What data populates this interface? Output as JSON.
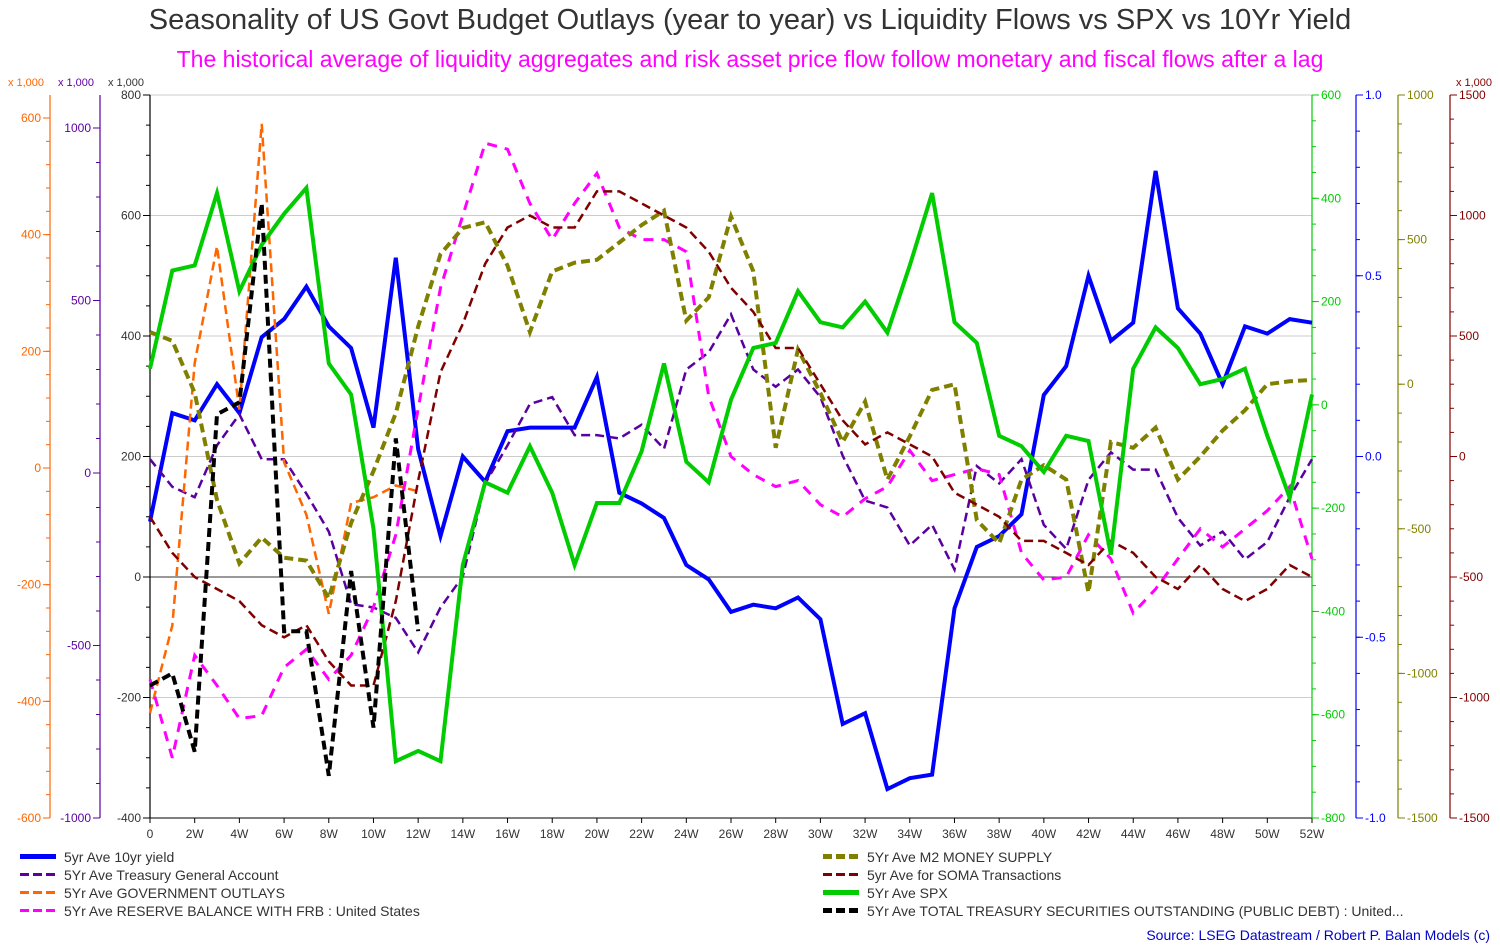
{
  "chart_data": {
    "type": "line",
    "title": "Seasonality of US Govt Budget Outlays (year to year) vs Liquidity Flows vs SPX vs 10Yr Yield",
    "subtitle": "The historical average of liquidity aggregates and risk asset price flow follow monetary and fiscal flows after a lag",
    "source": "Source: LSEG Datastream / Robert P. Balan Models (c)",
    "xlabel": "",
    "x_ticks": [
      "0",
      "2W",
      "4W",
      "6W",
      "8W",
      "10W",
      "12W",
      "14W",
      "16W",
      "18W",
      "20W",
      "22W",
      "24W",
      "26W",
      "28W",
      "30W",
      "32W",
      "34W",
      "36W",
      "38W",
      "40W",
      "42W",
      "44W",
      "46W",
      "48W",
      "50W",
      "52W"
    ],
    "x_range": [
      0,
      52
    ],
    "grid": true,
    "axes": [
      {
        "id": "outlays",
        "side": "left",
        "color": "#ff6600",
        "unit": "x 1,000",
        "range": [
          -600,
          640
        ],
        "ticks": [
          600,
          400,
          200,
          0,
          -200,
          -400,
          -600
        ]
      },
      {
        "id": "tga",
        "side": "left",
        "color": "#5a00a0",
        "unit": "x 1,000",
        "range": [
          -1000,
          1050
        ],
        "ticks": [
          1000,
          500,
          0,
          -500,
          -1000
        ]
      },
      {
        "id": "main",
        "side": "left",
        "color": "#000000",
        "unit": "x 1,000",
        "range": [
          -400,
          800
        ],
        "ticks": [
          800,
          600,
          400,
          200,
          0,
          -200,
          -400
        ]
      },
      {
        "id": "spx",
        "side": "right",
        "color": "#00cc00",
        "unit": "",
        "range": [
          -800,
          600
        ],
        "ticks": [
          600,
          400,
          200,
          0,
          -200,
          -400,
          -600,
          -800
        ]
      },
      {
        "id": "yield",
        "side": "right",
        "color": "#0000ff",
        "unit": "",
        "range": [
          -1.0,
          1.0
        ],
        "ticks": [
          "1.0",
          "0.5",
          "0.0",
          "-0.5",
          "-1.0"
        ]
      },
      {
        "id": "m2",
        "side": "right",
        "color": "#808000",
        "unit": "",
        "range": [
          -1500,
          1000
        ],
        "ticks": [
          1000,
          500,
          0,
          -500,
          -1000,
          -1500
        ]
      },
      {
        "id": "soma",
        "side": "right",
        "color": "#800000",
        "unit": "x 1,000",
        "range": [
          -1500,
          1500
        ],
        "ticks": [
          1500,
          1000,
          500,
          0,
          -500,
          -1000,
          -1500
        ]
      }
    ],
    "series": [
      {
        "name": "5yr Ave 10yr yield",
        "axis": "yield",
        "color": "#0000ff",
        "style": "solid",
        "width": 4,
        "x": [
          0,
          1,
          2,
          3,
          4,
          5,
          6,
          7,
          8,
          9,
          10,
          11,
          12,
          13,
          14,
          15,
          16,
          17,
          18,
          19,
          20,
          21,
          22,
          23,
          24,
          25,
          26,
          27,
          28,
          29,
          30,
          31,
          32,
          33,
          34,
          35,
          36,
          37,
          38,
          39,
          40,
          41,
          42,
          43,
          44,
          45,
          46,
          47,
          48,
          49,
          50,
          51,
          52
        ],
        "values": [
          -0.18,
          0.12,
          0.1,
          0.2,
          0.12,
          0.33,
          0.38,
          0.47,
          0.36,
          0.3,
          0.08,
          0.55,
          0.02,
          -0.22,
          0.0,
          -0.07,
          0.07,
          0.08,
          0.08,
          0.08,
          0.22,
          -0.1,
          -0.13,
          -0.17,
          -0.3,
          -0.34,
          -0.43,
          -0.41,
          -0.42,
          -0.39,
          -0.45,
          -0.74,
          -0.71,
          -0.92,
          -0.89,
          -0.88,
          -0.42,
          -0.25,
          -0.22,
          -0.16,
          0.17,
          0.25,
          0.5,
          0.32,
          0.37,
          0.79,
          0.41,
          0.34,
          0.2,
          0.36,
          0.34,
          0.38,
          0.37
        ]
      },
      {
        "name": "5Yr Ave Treasury General Account",
        "axis": "tga",
        "color": "#5a00a0",
        "style": "dash",
        "width": 2.5,
        "x": [
          0,
          1,
          2,
          3,
          4,
          5,
          6,
          7,
          8,
          9,
          10,
          11,
          12,
          13,
          14,
          15,
          16,
          17,
          18,
          19,
          20,
          21,
          22,
          23,
          24,
          25,
          26,
          27,
          28,
          29,
          30,
          31,
          32,
          33,
          34,
          35,
          36,
          37,
          38,
          39,
          40,
          41,
          42,
          43,
          44,
          45,
          46,
          47,
          48,
          49,
          50,
          51,
          52
        ],
        "values": [
          40,
          -40,
          -70,
          80,
          170,
          40,
          40,
          -60,
          -170,
          -380,
          -390,
          -420,
          -520,
          -390,
          -300,
          -30,
          80,
          200,
          220,
          110,
          110,
          100,
          140,
          70,
          300,
          350,
          460,
          300,
          250,
          300,
          220,
          50,
          -80,
          -100,
          -210,
          -150,
          -280,
          20,
          -30,
          40,
          -150,
          -220,
          -20,
          60,
          10,
          10,
          -130,
          -210,
          -170,
          -250,
          -200,
          -70,
          40
        ]
      },
      {
        "name": "5Yr Ave GOVERNMENT OUTLAYS",
        "axis": "outlays",
        "color": "#ff6600",
        "style": "dash",
        "width": 2.5,
        "x": [
          0,
          1,
          2,
          3,
          4,
          5,
          6,
          7,
          8,
          9,
          10,
          11,
          12
        ],
        "values": [
          -420,
          -270,
          180,
          380,
          100,
          590,
          10,
          -80,
          -250,
          -60,
          -50,
          -30,
          -40
        ]
      },
      {
        "name": "5Yr Ave RESERVE BALANCE WITH FRB : United States",
        "axis": "main",
        "color": "#ff00ff",
        "style": "dash",
        "width": 3,
        "x": [
          0,
          1,
          2,
          3,
          4,
          5,
          6,
          7,
          8,
          9,
          10,
          11,
          12,
          13,
          14,
          15,
          16,
          17,
          18,
          19,
          20,
          21,
          22,
          23,
          24,
          25,
          26,
          27,
          28,
          29,
          30,
          31,
          32,
          33,
          34,
          35,
          36,
          37,
          38,
          39,
          40,
          41,
          42,
          43,
          44,
          45,
          46,
          47,
          48,
          49,
          50,
          51,
          52
        ],
        "values": [
          -170,
          -300,
          -130,
          -180,
          -235,
          -230,
          -150,
          -120,
          -170,
          -130,
          -50,
          70,
          280,
          480,
          600,
          720,
          710,
          620,
          560,
          620,
          670,
          580,
          560,
          560,
          540,
          300,
          200,
          170,
          150,
          160,
          120,
          100,
          130,
          150,
          210,
          160,
          170,
          180,
          170,
          40,
          -5,
          0,
          70,
          30,
          -60,
          -20,
          30,
          80,
          50,
          80,
          110,
          150,
          30
        ]
      },
      {
        "name": "5Yr Ave M2 MONEY SUPPLY",
        "axis": "m2",
        "color": "#808000",
        "style": "dash",
        "width": 4,
        "x": [
          0,
          1,
          2,
          3,
          4,
          5,
          6,
          7,
          8,
          9,
          10,
          11,
          12,
          13,
          14,
          15,
          16,
          17,
          18,
          19,
          20,
          21,
          22,
          23,
          24,
          25,
          26,
          27,
          28,
          29,
          30,
          31,
          32,
          33,
          34,
          35,
          36,
          37,
          38,
          39,
          40,
          41,
          42,
          43,
          44,
          45,
          46,
          47,
          48,
          49,
          50,
          51,
          52
        ],
        "values": [
          180,
          150,
          -30,
          -400,
          -620,
          -530,
          -600,
          -610,
          -740,
          -480,
          -300,
          -100,
          200,
          450,
          540,
          560,
          410,
          180,
          390,
          420,
          430,
          490,
          550,
          600,
          220,
          300,
          580,
          390,
          -220,
          120,
          -30,
          -200,
          -60,
          -330,
          -180,
          -20,
          0,
          -470,
          -550,
          -330,
          -280,
          -330,
          -720,
          -200,
          -220,
          -150,
          -330,
          -250,
          -160,
          -90,
          0,
          10,
          15
        ]
      },
      {
        "name": "5yr Ave for SOMA Transactions",
        "axis": "soma",
        "color": "#800000",
        "style": "dash",
        "width": 2.5,
        "x": [
          0,
          1,
          2,
          3,
          4,
          5,
          6,
          7,
          8,
          9,
          10,
          11,
          12,
          13,
          14,
          15,
          16,
          17,
          18,
          19,
          20,
          21,
          22,
          23,
          24,
          25,
          26,
          27,
          28,
          29,
          30,
          31,
          32,
          33,
          34,
          35,
          36,
          37,
          38,
          39,
          40,
          41,
          42,
          43,
          44,
          45,
          46,
          47,
          48,
          49,
          50,
          51,
          52
        ],
        "values": [
          -250,
          -400,
          -500,
          -550,
          -600,
          -700,
          -750,
          -700,
          -850,
          -950,
          -950,
          -600,
          -100,
          350,
          550,
          800,
          950,
          1000,
          950,
          950,
          1100,
          1100,
          1050,
          1000,
          950,
          850,
          700,
          600,
          450,
          450,
          300,
          150,
          50,
          100,
          50,
          0,
          -150,
          -200,
          -250,
          -350,
          -350,
          -400,
          -450,
          -350,
          -400,
          -500,
          -550,
          -450,
          -550,
          -600,
          -550,
          -450,
          -500
        ]
      },
      {
        "name": "5Yr Ave SPX",
        "axis": "spx",
        "color": "#00cc00",
        "style": "solid",
        "width": 4,
        "x": [
          0,
          1,
          2,
          3,
          4,
          5,
          6,
          7,
          8,
          9,
          10,
          11,
          12,
          13,
          14,
          15,
          16,
          17,
          18,
          19,
          20,
          21,
          22,
          23,
          24,
          25,
          26,
          27,
          28,
          29,
          30,
          31,
          32,
          33,
          34,
          35,
          36,
          37,
          38,
          39,
          40,
          41,
          42,
          43,
          44,
          45,
          46,
          47,
          48,
          49,
          50,
          51,
          52
        ],
        "values": [
          70,
          260,
          270,
          410,
          220,
          310,
          370,
          420,
          80,
          20,
          -240,
          -690,
          -670,
          -690,
          -310,
          -150,
          -170,
          -80,
          -170,
          -310,
          -190,
          -190,
          -90,
          80,
          -110,
          -150,
          10,
          110,
          120,
          220,
          160,
          150,
          200,
          140,
          270,
          410,
          160,
          120,
          -60,
          -80,
          -130,
          -60,
          -70,
          -290,
          70,
          150,
          110,
          40,
          50,
          70,
          -60,
          -180,
          20
        ]
      },
      {
        "name": "5Yr Ave TOTAL TREASURY SECURITIES OUTSTANDING (PUBLIC DEBT) : United...",
        "axis": "main",
        "color": "#000000",
        "style": "dash",
        "width": 4,
        "x": [
          0,
          1,
          2,
          3,
          4,
          5,
          6,
          7,
          8,
          9,
          10,
          11,
          12
        ],
        "values": [
          -180,
          -160,
          -290,
          270,
          290,
          620,
          -90,
          -90,
          -330,
          10,
          -250,
          230,
          -90
        ]
      }
    ],
    "legend_placement": "bottom"
  }
}
